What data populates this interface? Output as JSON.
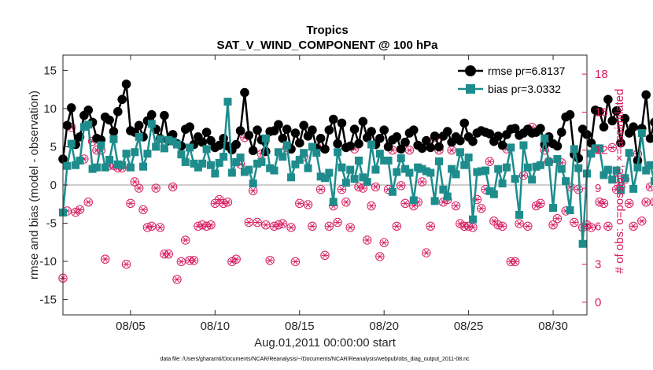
{
  "colors": {
    "rmse": "#000000",
    "bias": "#1e8c8c",
    "obs": "#d81b60",
    "zero": "#bdbdbd",
    "axis": "#262626"
  },
  "chart_data": {
    "type": "line",
    "title": "Tropics",
    "subtitle": "SAT_V_WIND_COMPONENT @ 100 hPa",
    "xlabel": "Aug.01,2011 00:00:00 start",
    "ylabel": "rmse and bias (model - observation)",
    "ylabel_right": "# of obs: o=possible; ×=assimilated",
    "footnote": "data file: /Users/gharamti/Documents/NCAR/Reanalysis/~/Documents/NCAR/Reanalysis/webpub/obs_diag_output_2011-08.nc",
    "xlim": [
      1,
      32
    ],
    "ylim": [
      -17,
      17
    ],
    "ylim_right": [
      -1,
      19.5
    ],
    "x_ticks": [
      5,
      10,
      15,
      20,
      25,
      30
    ],
    "x_tick_labels": [
      "08/05",
      "08/10",
      "08/15",
      "08/20",
      "08/25",
      "08/30"
    ],
    "y_ticks": [
      -15,
      -10,
      -5,
      0,
      5,
      10,
      15
    ],
    "y_tick_labels": [
      "-15",
      "-10",
      "-5",
      "0",
      "5",
      "10",
      "15"
    ],
    "y_ticks_right": [
      0,
      3,
      6,
      9,
      12,
      15,
      18
    ],
    "y_tick_labels_right": [
      "0",
      "3",
      "6",
      "9",
      "12",
      "15",
      "18"
    ],
    "x_start": 1.0,
    "x_step": 0.25,
    "series": [
      {
        "name": "rmse",
        "legend": "rmse pr=6.8137",
        "marker": "circle",
        "values": [
          3.4,
          7.8,
          10.1,
          5.3,
          6.3,
          9.1,
          9.8,
          8.2,
          6.1,
          5.9,
          8.9,
          8.5,
          7.0,
          9.6,
          11.2,
          13.2,
          7.1,
          6.9,
          7.8,
          6.3,
          8.4,
          9.2,
          7.3,
          6.1,
          9.1,
          5.8,
          6.6,
          5.4,
          5.1,
          7.3,
          7.6,
          5.3,
          6.3,
          5.6,
          6.9,
          5.8,
          4.9,
          5.2,
          6.1,
          5.1,
          4.6,
          5.3,
          7.1,
          12.1,
          6.5,
          4.5,
          7.2,
          5.9,
          4.4,
          7.0,
          7.1,
          7.9,
          6.1,
          7.3,
          4.7,
          6.8,
          5.5,
          7.8,
          6.4,
          7.2,
          4.8,
          6.1,
          4.7,
          7.2,
          8.6,
          5.4,
          8.1,
          4.9,
          5.1,
          7.3,
          5.4,
          8.3,
          6.2,
          7.0,
          5.3,
          6.1,
          7.2,
          5.0,
          5.9,
          6.3,
          4.7,
          5.6,
          6.8,
          7.2,
          5.2,
          4.8,
          5.8,
          4.9,
          6.4,
          5.0,
          6.4,
          7.0,
          5.6,
          6.3,
          5.8,
          8.1,
          6.3,
          5.7,
          6.8,
          7.1,
          6.9,
          6.7,
          5.7,
          6.4,
          5.2,
          6.6,
          7.3,
          7.4,
          6.5,
          6.8,
          7.3,
          6.8,
          6.9,
          7.4,
          5.3,
          6.3,
          5.4,
          5.1,
          6.9,
          8.9,
          9.2,
          4.0,
          3.5,
          7.3,
          6.6,
          5.5,
          9.8,
          9.6,
          7.6,
          11.2,
          8.4,
          9.7,
          5.5,
          8.7,
          6.8,
          7.6,
          3.2,
          7.4,
          11.8,
          6.1,
          8.2,
          9.5,
          12.2,
          6.3,
          6.1,
          10.2,
          6.4,
          5.4,
          5.8,
          5.7,
          6.6,
          6.3,
          8.2,
          5.6,
          10.0,
          8.1,
          8.7,
          5.7,
          5.2,
          6.5,
          8.6,
          10.6,
          7.2,
          9.1,
          7.0,
          3.6,
          10.1,
          6.5,
          8.8,
          9.8,
          6.9,
          10.6,
          5.4,
          2.3
        ]
      },
      {
        "name": "bias",
        "legend": "bias pr=3.0332",
        "marker": "square",
        "values": [
          -3.6,
          2.5,
          5.4,
          2.6,
          3.2,
          7.6,
          7.9,
          2.1,
          2.3,
          5.2,
          2.3,
          3.3,
          6.0,
          2.7,
          2.6,
          4.1,
          2.3,
          4.3,
          6.3,
          2.4,
          4.1,
          8.0,
          5.0,
          6.0,
          4.8,
          5.9,
          5.7,
          5.3,
          4.0,
          3.0,
          4.9,
          2.8,
          2.3,
          2.8,
          4.7,
          2.6,
          1.5,
          2.9,
          3.7,
          10.9,
          1.6,
          3.0,
          3.6,
          1.7,
          2.0,
          0.2,
          2.8,
          3.0,
          6.1,
          2.2,
          1.9,
          4.3,
          3.7,
          5.2,
          1.0,
          2.7,
          3.3,
          4.2,
          2.2,
          5.0,
          4.2,
          1.1,
          0.9,
          1.6,
          -2.2,
          4.3,
          2.3,
          0.3,
          2.0,
          0.8,
          3.2,
          1.0,
          0.4,
          5.3,
          2.0,
          4.1,
          3.2,
          3.2,
          -0.9,
          1.7,
          3.5,
          2.1,
          1.6,
          -2.0,
          2.3,
          2.1,
          1.8,
          1.6,
          -2.1,
          3.1,
          -0.6,
          -1.5,
          2.1,
          1.4,
          4.3,
          2.6,
          3.6,
          -4.5,
          1.7,
          1.8,
          1.9,
          -0.8,
          -1.2,
          2.1,
          0.2,
          2.3,
          4.9,
          0.8,
          -3.9,
          5.2,
          2.3,
          0.7,
          2.4,
          2.6,
          6.1,
          3.0,
          -3.0,
          3.4,
          2.1,
          0.5,
          -3.3,
          4.7,
          2.2,
          -7.7,
          1.5,
          4.1,
          4.8,
          4.8,
          1.3,
          2.0,
          0.7,
          1.9,
          -0.7,
          0.9,
          4.2,
          -0.5,
          2.3,
          6.8,
          1.9,
          2.6,
          0.5,
          3.7,
          4.6,
          1.0,
          3.6,
          2.8,
          3.9,
          3.1,
          -1.8,
          0.4,
          1.0,
          0.3,
          2.6,
          2.9,
          1.8,
          4.1,
          3.0,
          3.4,
          1.6,
          2.6,
          2.3,
          3.0,
          4.0,
          1.7,
          5.5,
          5.3,
          3.3,
          5.2,
          3.0,
          4.2,
          2.5,
          1.3
        ]
      },
      {
        "name": "obs",
        "marker": "circle-star",
        "axis": "right",
        "values": [
          1.9,
          7.2,
          13.8,
          7.1,
          7.3,
          11.3,
          7.9,
          12.7,
          12.0,
          12.0,
          3.4,
          10.8,
          10.8,
          10.6,
          10.6,
          3.0,
          7.8,
          9.5,
          9.0,
          7.3,
          5.9,
          6.0,
          9.0,
          5.9,
          3.8,
          3.8,
          9.1,
          1.8,
          3.2,
          4.9,
          3.3,
          3.3,
          6.0,
          6.1,
          6.0,
          6.1,
          7.8,
          8.1,
          7.8,
          7.9,
          3.2,
          3.4,
          10.9,
          13.0,
          6.3,
          8.8,
          6.3,
          11.7,
          6.1,
          3.3,
          6.0,
          6.1,
          6.2,
          12.2,
          5.9,
          3.2,
          7.8,
          11.5,
          7.7,
          6.0,
          12.3,
          8.9,
          3.7,
          6.0,
          7.6,
          6.3,
          8.9,
          7.9,
          5.9,
          12.1,
          9.1,
          9.0,
          4.9,
          7.6,
          9.1,
          3.6,
          4.7,
          8.9,
          12.0,
          6.0,
          9.2,
          7.8,
          12.0,
          7.6,
          7.9,
          9.5,
          3.9,
          6.0,
          13.0,
          12.0,
          7.9,
          8.1,
          12.0,
          7.6,
          6.2,
          6.0,
          6.0,
          5.9,
          8.1,
          7.4,
          8.9,
          11.1,
          6.4,
          6.1,
          6.0,
          12.1,
          3.2,
          3.2,
          6.2,
          10.0,
          6.0,
          13.8,
          7.6,
          7.8,
          12.0,
          11.1,
          6.1,
          6.6,
          11.0,
          7.2,
          9.1,
          6.3,
          8.9,
          5.9,
          6.1,
          5.9,
          12.1,
          7.9,
          7.8,
          6.0,
          12.2,
          8.9,
          9.1,
          9.7,
          7.8,
          6.0,
          11.7,
          6.4,
          7.9,
          9.1,
          7.9,
          7.6,
          3.4,
          6.3,
          11.5,
          1.4,
          6.4,
          4.7,
          3.5,
          11.9,
          3.3,
          3.5,
          3.3,
          12.0,
          3.2,
          7.5,
          3.5,
          11.3,
          11.3,
          13.4,
          3.4,
          12.3,
          3.3,
          7.8,
          7.0,
          6.2,
          9.0,
          6.0,
          7.1,
          6.2,
          2.9,
          5.9,
          6.0,
          0.1
        ]
      }
    ]
  }
}
